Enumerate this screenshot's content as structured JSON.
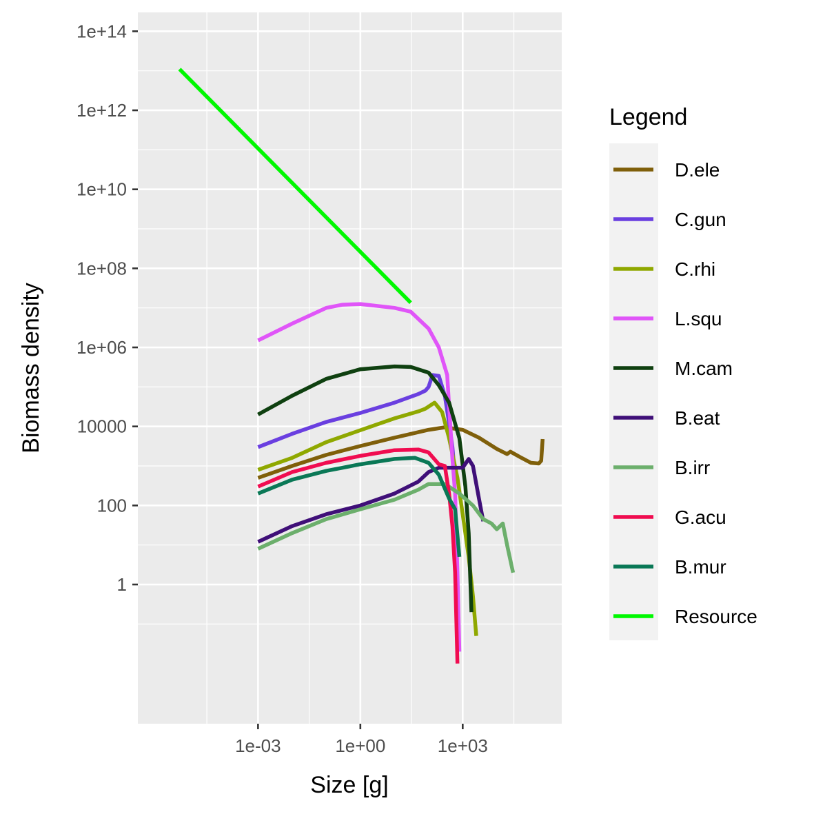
{
  "chart_data": {
    "type": "line",
    "xlabel": "Size [g]",
    "ylabel": "Biomass density",
    "x_scale": "log10",
    "y_scale": "log10",
    "xlim": [
      3e-07,
      800000.0
    ],
    "ylim": [
      0.0003,
      300000000000000.0
    ],
    "grid": true,
    "legend_title": "Legend",
    "legend_position": "right",
    "x_ticks": [
      {
        "value": 0.001,
        "label": "1e-03"
      },
      {
        "value": 1,
        "label": "1e+00"
      },
      {
        "value": 1000,
        "label": "1e+03"
      }
    ],
    "y_ticks": [
      {
        "value": 100000000000000.0,
        "label": "1e+14"
      },
      {
        "value": 1000000000000.0,
        "label": "1e+12"
      },
      {
        "value": 10000000000.0,
        "label": "1e+10"
      },
      {
        "value": 100000000.0,
        "label": "1e+08"
      },
      {
        "value": 1000000.0,
        "label": "1e+06"
      },
      {
        "value": 10000.0,
        "label": "10000"
      },
      {
        "value": 100,
        "label": "100"
      },
      {
        "value": 1,
        "label": "1"
      }
    ],
    "series": [
      {
        "name": "D.ele",
        "color": "#7F5F0A",
        "points": [
          [
            0.001,
            500
          ],
          [
            0.01,
            1000
          ],
          [
            0.1,
            1900
          ],
          [
            1,
            3200
          ],
          [
            10,
            5200
          ],
          [
            100,
            8200
          ],
          [
            300,
            9500
          ],
          [
            1000,
            8200
          ],
          [
            3000,
            5200
          ],
          [
            10000,
            2700
          ],
          [
            20000,
            2000
          ],
          [
            25000,
            2300
          ],
          [
            50000,
            1650
          ],
          [
            100000,
            1200
          ],
          [
            170000,
            1150
          ],
          [
            200000,
            1350
          ],
          [
            220000,
            4800
          ]
        ]
      },
      {
        "name": "C.gun",
        "color": "#6A3FE0",
        "points": [
          [
            0.001,
            3000
          ],
          [
            0.01,
            6500
          ],
          [
            0.1,
            13000
          ],
          [
            1,
            22000
          ],
          [
            10,
            40000
          ],
          [
            50,
            66000
          ],
          [
            80,
            80000
          ],
          [
            100,
            100000
          ],
          [
            130,
            200000
          ],
          [
            200,
            190000
          ],
          [
            300,
            60000
          ],
          [
            400,
            12000
          ],
          [
            500,
            3000
          ],
          [
            600,
            500
          ]
        ]
      },
      {
        "name": "C.rhi",
        "color": "#8FA800",
        "points": [
          [
            0.001,
            800
          ],
          [
            0.01,
            1600
          ],
          [
            0.1,
            4000
          ],
          [
            1,
            8000
          ],
          [
            10,
            16000
          ],
          [
            50,
            24000
          ],
          [
            80,
            28000
          ],
          [
            150,
            40000
          ],
          [
            250,
            23000
          ],
          [
            400,
            5000
          ],
          [
            700,
            500
          ],
          [
            1000,
            60
          ],
          [
            1500,
            5
          ],
          [
            2000,
            0.5
          ],
          [
            2500,
            0.05
          ]
        ]
      },
      {
        "name": "L.squ",
        "color": "#E055F8",
        "points": [
          [
            0.001,
            1500000
          ],
          [
            0.01,
            4000000
          ],
          [
            0.1,
            10000000
          ],
          [
            0.3,
            12000000
          ],
          [
            1,
            12500000
          ],
          [
            10,
            10000000
          ],
          [
            30,
            8000000
          ],
          [
            100,
            3000000
          ],
          [
            200,
            1000000
          ],
          [
            350,
            200000
          ],
          [
            500,
            1500
          ],
          [
            600,
            200
          ],
          [
            700,
            2
          ],
          [
            800,
            0.02
          ]
        ]
      },
      {
        "name": "M.cam",
        "color": "#0F4010",
        "points": [
          [
            0.001,
            20000
          ],
          [
            0.01,
            60000
          ],
          [
            0.1,
            160000
          ],
          [
            1,
            280000
          ],
          [
            10,
            330000
          ],
          [
            30,
            320000
          ],
          [
            100,
            230000
          ],
          [
            200,
            110000
          ],
          [
            400,
            40000
          ],
          [
            800,
            5000
          ],
          [
            1200,
            300
          ],
          [
            1500,
            20
          ],
          [
            1800,
            0.2
          ]
        ]
      },
      {
        "name": "B.eat",
        "color": "#3F0F78",
        "points": [
          [
            0.001,
            12
          ],
          [
            0.01,
            30
          ],
          [
            0.1,
            60
          ],
          [
            1,
            100
          ],
          [
            10,
            200
          ],
          [
            50,
            400
          ],
          [
            100,
            700
          ],
          [
            200,
            900
          ],
          [
            500,
            900
          ],
          [
            1000,
            900
          ],
          [
            1500,
            1500
          ],
          [
            2000,
            1000
          ],
          [
            3000,
            150
          ],
          [
            4000,
            40
          ]
        ]
      },
      {
        "name": "B.irr",
        "color": "#6CAF6C",
        "points": [
          [
            0.001,
            8
          ],
          [
            0.01,
            20
          ],
          [
            0.1,
            45
          ],
          [
            1,
            80
          ],
          [
            10,
            140
          ],
          [
            50,
            250
          ],
          [
            100,
            350
          ],
          [
            300,
            350
          ],
          [
            800,
            200
          ],
          [
            2000,
            100
          ],
          [
            4000,
            45
          ],
          [
            7000,
            35
          ],
          [
            10000,
            25
          ],
          [
            15000,
            35
          ],
          [
            20000,
            10
          ],
          [
            30000,
            2
          ]
        ]
      },
      {
        "name": "G.acu",
        "color": "#F00C50",
        "points": [
          [
            0.001,
            300
          ],
          [
            0.01,
            700
          ],
          [
            0.1,
            1200
          ],
          [
            1,
            1800
          ],
          [
            10,
            2500
          ],
          [
            50,
            2600
          ],
          [
            100,
            2200
          ],
          [
            200,
            1100
          ],
          [
            300,
            1000
          ],
          [
            400,
            200
          ],
          [
            500,
            30
          ],
          [
            600,
            2
          ],
          [
            700,
            0.01
          ]
        ]
      },
      {
        "name": "B.mur",
        "color": "#0A7856",
        "points": [
          [
            0.001,
            200
          ],
          [
            0.01,
            450
          ],
          [
            0.1,
            750
          ],
          [
            1,
            1100
          ],
          [
            10,
            1500
          ],
          [
            40,
            1600
          ],
          [
            100,
            1200
          ],
          [
            200,
            600
          ],
          [
            400,
            150
          ],
          [
            600,
            80
          ],
          [
            800,
            5
          ]
        ]
      },
      {
        "name": "Resource",
        "color": "#00F800",
        "points": [
          [
            5.01e-06,
            11000000000000.0
          ],
          [
            30,
            13500000.0
          ]
        ]
      }
    ]
  }
}
